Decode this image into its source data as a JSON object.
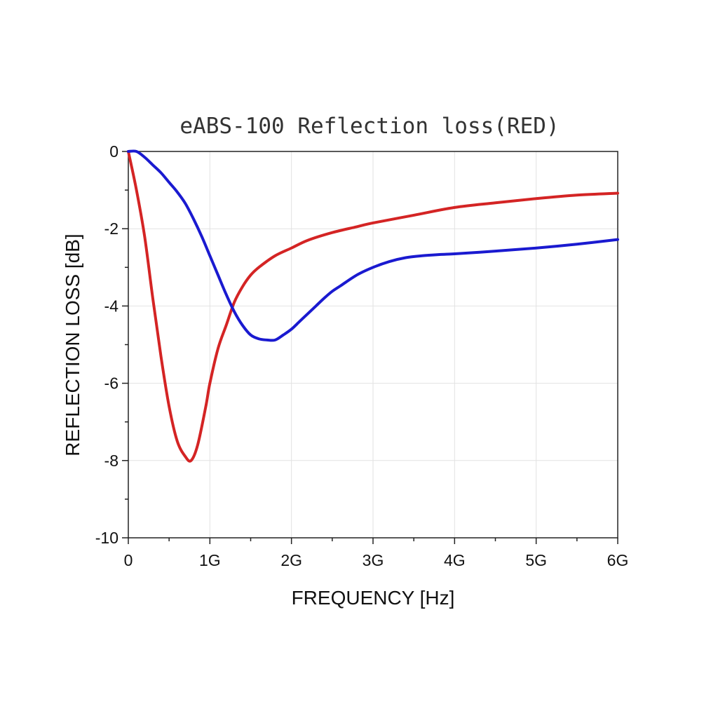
{
  "chart_data": {
    "type": "line",
    "title": "eABS-100 Reflection loss(RED)",
    "xlabel": "FREQUENCY [Hz]",
    "ylabel": "REFLECTION LOSS [dB]",
    "xlim": [
      0,
      6
    ],
    "ylim": [
      -10,
      0
    ],
    "x_ticks": [
      0,
      1,
      2,
      3,
      4,
      5,
      6
    ],
    "x_tick_labels": [
      "0",
      "1G",
      "2G",
      "3G",
      "4G",
      "5G",
      "6G"
    ],
    "y_ticks": [
      0,
      -2,
      -4,
      -6,
      -8,
      -10
    ],
    "y_tick_labels": [
      "0",
      "-2",
      "-4",
      "-6",
      "-8",
      "-10"
    ],
    "grid": true,
    "legend": false,
    "series": [
      {
        "color": "#d42424",
        "x": [
          0,
          0.1,
          0.2,
          0.3,
          0.4,
          0.5,
          0.6,
          0.7,
          0.77,
          0.85,
          0.95,
          1.0,
          1.1,
          1.2,
          1.3,
          1.4,
          1.5,
          1.6,
          1.8,
          2.0,
          2.2,
          2.5,
          2.8,
          3.0,
          3.5,
          4.0,
          4.5,
          5.0,
          5.5,
          6.0
        ],
        "y": [
          0,
          -1.0,
          -2.2,
          -3.8,
          -5.3,
          -6.6,
          -7.5,
          -7.9,
          -8.0,
          -7.6,
          -6.6,
          -6.0,
          -5.1,
          -4.5,
          -3.9,
          -3.5,
          -3.2,
          -3.0,
          -2.7,
          -2.5,
          -2.3,
          -2.1,
          -1.95,
          -1.85,
          -1.65,
          -1.45,
          -1.33,
          -1.22,
          -1.13,
          -1.08
        ]
      },
      {
        "color": "#1a1ad0",
        "x": [
          0,
          0.1,
          0.2,
          0.3,
          0.4,
          0.5,
          0.6,
          0.7,
          0.8,
          0.9,
          1.0,
          1.1,
          1.2,
          1.3,
          1.4,
          1.5,
          1.6,
          1.7,
          1.8,
          1.9,
          2.0,
          2.1,
          2.2,
          2.3,
          2.4,
          2.5,
          2.6,
          2.8,
          3.0,
          3.2,
          3.4,
          3.6,
          3.8,
          4.0,
          4.5,
          5.0,
          5.5,
          6.0
        ],
        "y": [
          0,
          0,
          -0.15,
          -0.35,
          -0.55,
          -0.8,
          -1.05,
          -1.35,
          -1.75,
          -2.2,
          -2.7,
          -3.2,
          -3.7,
          -4.15,
          -4.5,
          -4.75,
          -4.85,
          -4.88,
          -4.88,
          -4.75,
          -4.6,
          -4.4,
          -4.2,
          -4.0,
          -3.8,
          -3.62,
          -3.48,
          -3.2,
          -3.0,
          -2.85,
          -2.75,
          -2.7,
          -2.67,
          -2.65,
          -2.58,
          -2.5,
          -2.4,
          -2.28
        ]
      }
    ]
  }
}
